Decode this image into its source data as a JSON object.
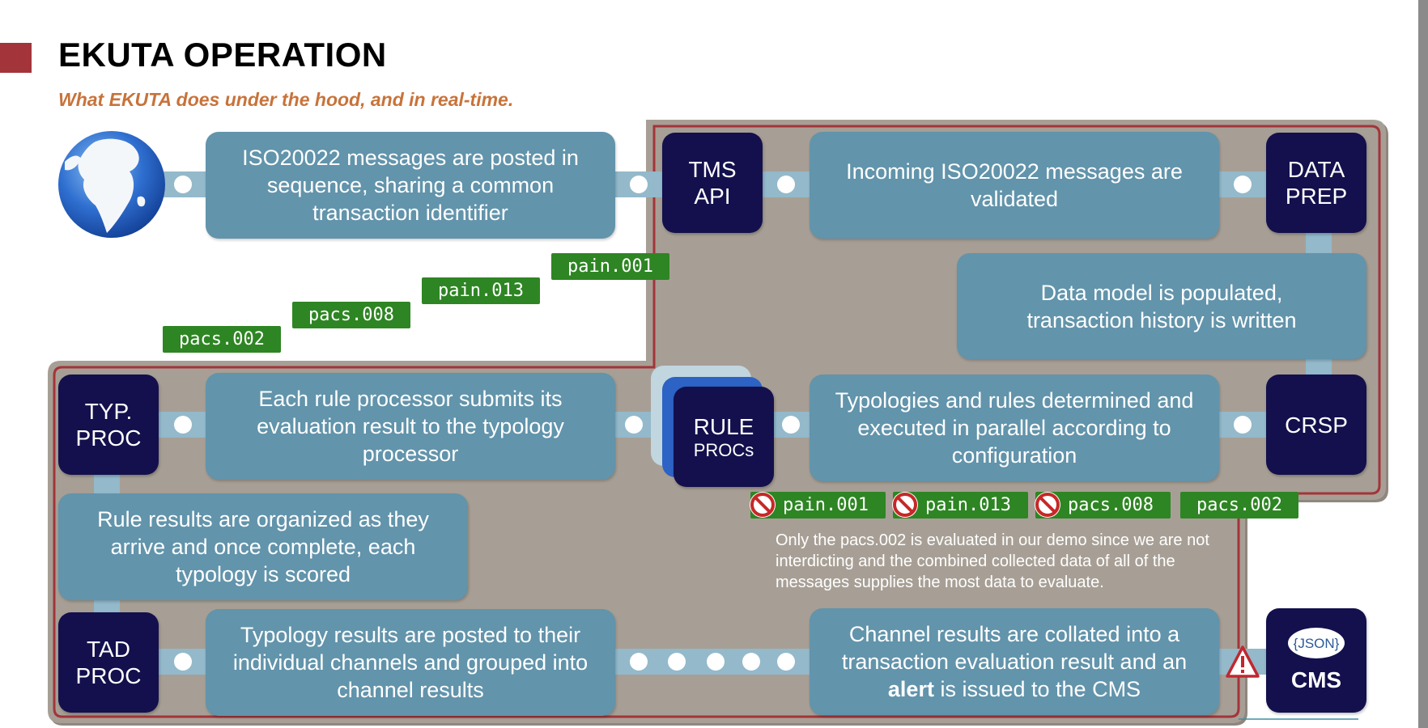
{
  "slide": {
    "title": "EKUTA OPERATION",
    "subtitle": "What EKUTA does under the hood, and in real-time."
  },
  "nodes": {
    "tms_api": [
      "TMS",
      "API"
    ],
    "data_prep": [
      "DATA",
      "PREP"
    ],
    "crsp": "CRSP",
    "rule_procs": [
      "RULE",
      "PROCs"
    ],
    "typ_proc": [
      "TYP.",
      "PROC"
    ],
    "tad_proc": [
      "TAD",
      "PROC"
    ],
    "cms": {
      "json_logo": "{JSON}",
      "label": "CMS"
    }
  },
  "steps": {
    "post_messages": "ISO20022 messages are posted in sequence, sharing a common transaction identifier",
    "validate": "Incoming ISO20022 messages are validated",
    "populate": "Data model is populated, transaction history is written",
    "execute_rules": "Typologies and rules determined and executed in parallel according to configuration",
    "submit_results": "Each rule processor submits its evaluation result to the typology processor",
    "score_typology": "Rule results are organized as they arrive and once complete, each typology is scored",
    "post_channels": "Typology results are posted to their individual channels and grouped into channel results",
    "alert": {
      "before": "Channel results are collated into a transaction evaluation result and an",
      "bold": "alert",
      "after": "is issued to the CMS"
    }
  },
  "message_stack": [
    "pain.001",
    "pain.013",
    "pacs.008",
    "pacs.002"
  ],
  "evaluated_messages": [
    {
      "label": "pain.001",
      "blocked": true
    },
    {
      "label": "pain.013",
      "blocked": true
    },
    {
      "label": "pacs.008",
      "blocked": true
    },
    {
      "label": "pacs.002",
      "blocked": false
    }
  ],
  "note": "Only the pacs.002 is evaluated in our demo since we are not interdicting and the combined collected data of all of the messages supplies the most data to evaluate.",
  "colors": {
    "node": "#13104d",
    "box": "#6294ab",
    "tag": "#2e8523",
    "panel": "#a79f95",
    "panel_border": "#a3343a",
    "connector": "#93b9cb",
    "title_accent": "#a3343a",
    "subtitle": "#c8733a"
  }
}
